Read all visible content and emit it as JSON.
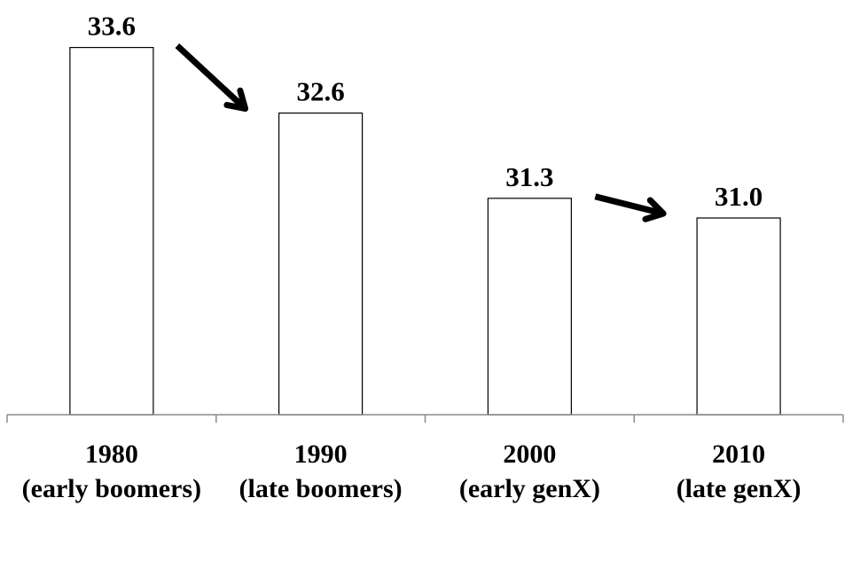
{
  "chart_data": {
    "type": "bar",
    "categories": [
      [
        "1980",
        "(early boomers)"
      ],
      [
        "1990",
        "(late boomers)"
      ],
      [
        "2000",
        "(early genX)"
      ],
      [
        "2010",
        "(late genX)"
      ]
    ],
    "values": [
      33.6,
      32.6,
      31.3,
      31.0
    ],
    "data_labels": [
      "33.6",
      "32.6",
      "31.3",
      "31.0"
    ],
    "title": "",
    "xlabel": "",
    "ylabel": "",
    "ylim": [
      28.0,
      35.5
    ],
    "grid": false,
    "legend": "none",
    "y_axis_visible": false,
    "bar_fill": "#ffffff",
    "bar_stroke": "#000000",
    "arrows": [
      {
        "from_category": "1980",
        "to_category": "1990",
        "direction": "down"
      },
      {
        "from_category": "2000",
        "to_category": "2010",
        "direction": "down"
      }
    ]
  }
}
